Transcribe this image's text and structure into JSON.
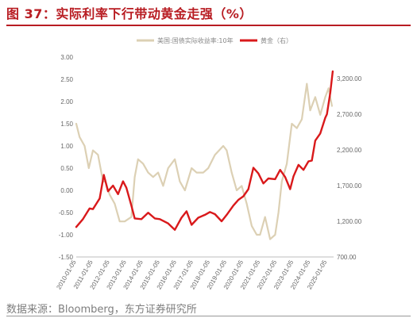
{
  "figure": {
    "title": "图 37：实际利率下行带动黄金走强（%）",
    "source": "数据来源：Bloomberg，东方证券研究所"
  },
  "chart_data": {
    "type": "line",
    "title": "图 37：实际利率下行带动黄金走强（%）",
    "legend_position": "top-center",
    "grid": false,
    "x_ticks": [
      "2010-01-05",
      "2011-01-05",
      "2012-01-05",
      "2013-01-05",
      "2014-01-05",
      "2015-01-05",
      "2016-01-05",
      "2017-01-05",
      "2018-01-05",
      "2019-01-05",
      "2020-01-05",
      "2021-01-05",
      "2022-01-05",
      "2023-01-05",
      "2024-01-05",
      "2025-01-05"
    ],
    "y_left": {
      "range": [
        -1.5,
        3.0
      ],
      "ticks": [
        "-1.50",
        "-1.00",
        "-0.50",
        "0.00",
        "0.50",
        "1.00",
        "1.50",
        "2.00",
        "2.50",
        "3.00"
      ]
    },
    "y_right": {
      "range": [
        700,
        3500
      ],
      "ticks": [
        "700.00",
        "1,200.00",
        "1,700.00",
        "2,200.00",
        "2,700.00",
        "3,200.00"
      ]
    },
    "series": [
      {
        "name": "美国:国债实际收益率:10年",
        "axis": "left",
        "color": "#dcd0b4",
        "x": [
          2010.0,
          2010.2,
          2010.5,
          2010.75,
          2011.0,
          2011.3,
          2011.6,
          2011.75,
          2012.0,
          2012.3,
          2012.6,
          2012.9,
          2013.3,
          2013.5,
          2013.7,
          2014.0,
          2014.3,
          2014.6,
          2014.9,
          2015.2,
          2015.5,
          2015.9,
          2016.2,
          2016.5,
          2016.9,
          2017.2,
          2017.6,
          2017.9,
          2018.3,
          2018.8,
          2019.0,
          2019.3,
          2019.6,
          2019.9,
          2020.2,
          2020.5,
          2020.8,
          2021.0,
          2021.3,
          2021.6,
          2021.9,
          2022.1,
          2022.3,
          2022.6,
          2022.9,
          2023.2,
          2023.5,
          2023.8,
          2024.0,
          2024.3,
          2024.6,
          2024.9,
          2025.1,
          2025.3
        ],
        "values": [
          1.5,
          1.2,
          1.0,
          0.5,
          0.9,
          0.8,
          0.2,
          0.2,
          -0.1,
          -0.3,
          -0.7,
          -0.7,
          -0.6,
          0.3,
          0.7,
          0.6,
          0.4,
          0.3,
          0.4,
          0.1,
          0.5,
          0.7,
          0.2,
          0.0,
          0.5,
          0.4,
          0.4,
          0.5,
          0.8,
          1.0,
          0.9,
          0.4,
          0.0,
          0.1,
          -0.3,
          -0.8,
          -1.0,
          -1.0,
          -0.6,
          -1.1,
          -1.0,
          -0.5,
          0.2,
          0.6,
          1.5,
          1.4,
          1.6,
          2.4,
          1.8,
          2.1,
          1.7,
          2.1,
          2.3,
          1.9
        ]
      },
      {
        "name": "黄金（右）",
        "axis": "right",
        "color": "#d9191b",
        "x": [
          2010.0,
          2010.4,
          2010.8,
          2011.0,
          2011.4,
          2011.65,
          2011.9,
          2012.2,
          2012.5,
          2012.8,
          2013.0,
          2013.3,
          2013.5,
          2013.9,
          2014.3,
          2014.7,
          2015.0,
          2015.5,
          2015.9,
          2016.3,
          2016.6,
          2016.9,
          2017.3,
          2017.7,
          2018.0,
          2018.3,
          2018.7,
          2019.0,
          2019.4,
          2019.7,
          2020.0,
          2020.3,
          2020.6,
          2020.9,
          2021.2,
          2021.5,
          2021.9,
          2022.2,
          2022.5,
          2022.8,
          2023.0,
          2023.3,
          2023.6,
          2023.9,
          2024.1,
          2024.3,
          2024.6,
          2024.9,
          2025.0,
          2025.2,
          2025.35
        ],
        "values": [
          1120,
          1230,
          1380,
          1370,
          1520,
          1850,
          1620,
          1700,
          1580,
          1760,
          1670,
          1420,
          1240,
          1230,
          1320,
          1240,
          1230,
          1170,
          1080,
          1250,
          1340,
          1150,
          1250,
          1290,
          1330,
          1300,
          1200,
          1290,
          1420,
          1500,
          1550,
          1650,
          1950,
          1870,
          1730,
          1800,
          1790,
          1920,
          1820,
          1650,
          1830,
          1990,
          1920,
          2040,
          2050,
          2330,
          2430,
          2650,
          2700,
          3000,
          3300
        ]
      }
    ]
  }
}
